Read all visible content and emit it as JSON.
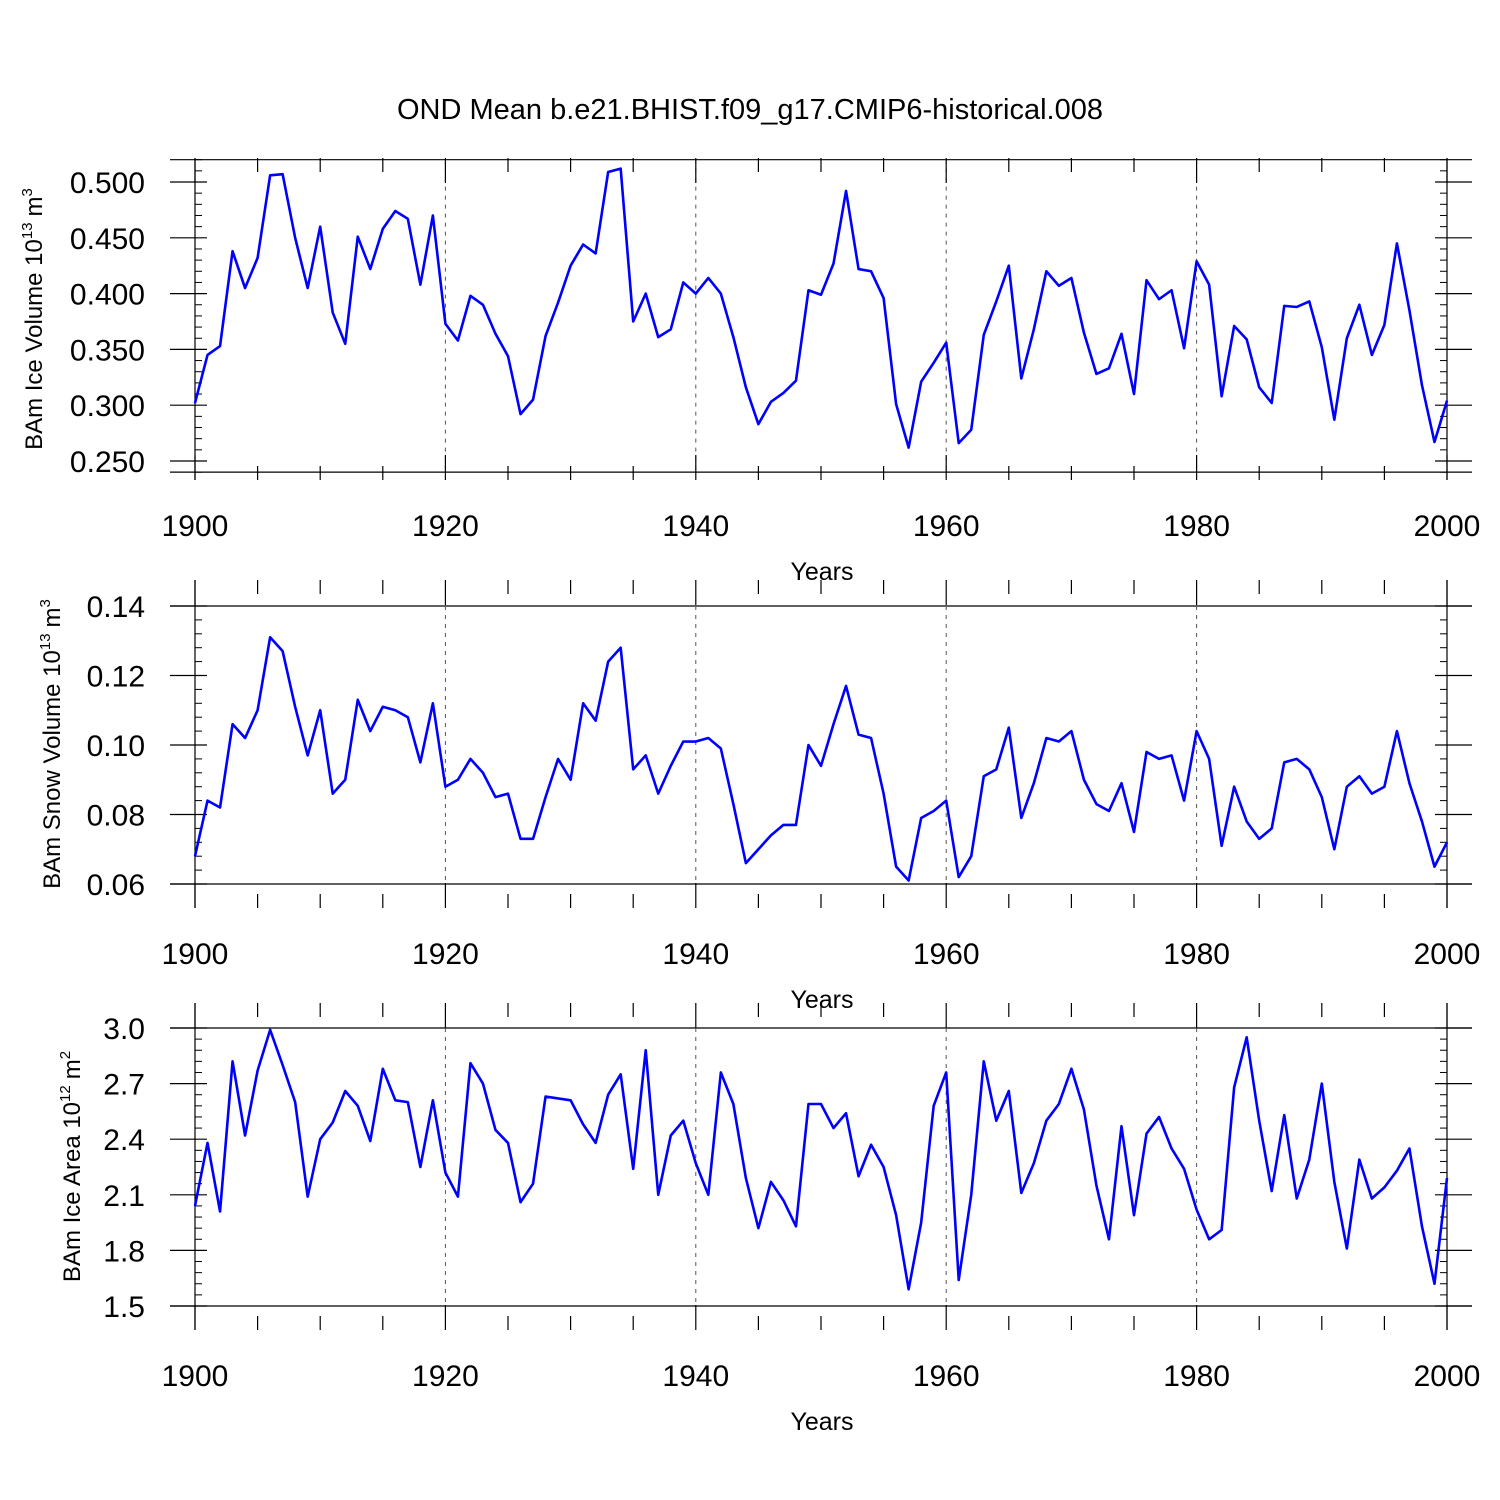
{
  "title": "OND Mean b.e21.BHIST.f09_g17.CMIP6-historical.008",
  "line_color": "#0000ff",
  "chart_data": [
    {
      "type": "line",
      "xlabel": "Years",
      "ylabel_main": "BAm Ice Volume 10",
      "ylabel_exp": "13",
      "ylabel_unit": "m",
      "ylabel_unit_exp": "3",
      "xlim": [
        1900,
        2000
      ],
      "ylim": [
        0.24,
        0.52
      ],
      "yticks": [
        0.25,
        0.3,
        0.35,
        0.4,
        0.45,
        0.5
      ],
      "ytick_labels": [
        "0.250",
        "0.300",
        "0.350",
        "0.400",
        "0.450",
        "0.500"
      ],
      "xticks": [
        1900,
        1920,
        1940,
        1960,
        1980,
        2000
      ],
      "xtick_labels": [
        "1900",
        "1920",
        "1940",
        "1960",
        "1980",
        "2000"
      ],
      "series": [
        {
          "name": "BAm Ice Volume",
          "x_start": 1900,
          "values": [
            0.302,
            0.345,
            0.353,
            0.438,
            0.405,
            0.432,
            0.506,
            0.507,
            0.45,
            0.405,
            0.46,
            0.383,
            0.355,
            0.451,
            0.422,
            0.458,
            0.474,
            0.467,
            0.408,
            0.47,
            0.373,
            0.358,
            0.398,
            0.39,
            0.364,
            0.344,
            0.292,
            0.305,
            0.362,
            0.392,
            0.425,
            0.444,
            0.436,
            0.509,
            0.512,
            0.375,
            0.4,
            0.361,
            0.368,
            0.41,
            0.4,
            0.414,
            0.4,
            0.361,
            0.316,
            0.283,
            0.303,
            0.311,
            0.322,
            0.403,
            0.399,
            0.427,
            0.492,
            0.422,
            0.42,
            0.396,
            0.301,
            0.262,
            0.321,
            0.338,
            0.356,
            0.266,
            0.278,
            0.363,
            0.393,
            0.425,
            0.324,
            0.368,
            0.42,
            0.407,
            0.414,
            0.365,
            0.328,
            0.333,
            0.364,
            0.31,
            0.412,
            0.395,
            0.403,
            0.351,
            0.429,
            0.408,
            0.308,
            0.371,
            0.359,
            0.316,
            0.302,
            0.389,
            0.388,
            0.393,
            0.352,
            0.287,
            0.36,
            0.39,
            0.345,
            0.372,
            0.445,
            0.385,
            0.318,
            0.267,
            0.304
          ]
        }
      ]
    },
    {
      "type": "line",
      "xlabel": "Years",
      "ylabel_main": "BAm Snow Volume 10",
      "ylabel_exp": "13",
      "ylabel_unit": "m",
      "ylabel_unit_exp": "3",
      "xlim": [
        1900,
        2000
      ],
      "ylim": [
        0.06,
        0.14
      ],
      "yticks": [
        0.06,
        0.08,
        0.1,
        0.12,
        0.14
      ],
      "ytick_labels": [
        "0.06",
        "0.08",
        "0.10",
        "0.12",
        "0.14"
      ],
      "xticks": [
        1900,
        1920,
        1940,
        1960,
        1980,
        2000
      ],
      "xtick_labels": [
        "1900",
        "1920",
        "1940",
        "1960",
        "1980",
        "2000"
      ],
      "series": [
        {
          "name": "BAm Snow Volume",
          "x_start": 1900,
          "values": [
            0.068,
            0.084,
            0.082,
            0.106,
            0.102,
            0.11,
            0.131,
            0.127,
            0.111,
            0.097,
            0.11,
            0.086,
            0.09,
            0.113,
            0.104,
            0.111,
            0.11,
            0.108,
            0.095,
            0.112,
            0.088,
            0.09,
            0.096,
            0.092,
            0.085,
            0.086,
            0.073,
            0.073,
            0.085,
            0.096,
            0.09,
            0.112,
            0.107,
            0.124,
            0.128,
            0.093,
            0.097,
            0.086,
            0.094,
            0.101,
            0.101,
            0.102,
            0.099,
            0.083,
            0.066,
            0.07,
            0.074,
            0.077,
            0.077,
            0.1,
            0.094,
            0.106,
            0.117,
            0.103,
            0.102,
            0.086,
            0.065,
            0.061,
            0.079,
            0.081,
            0.084,
            0.062,
            0.068,
            0.091,
            0.093,
            0.105,
            0.079,
            0.089,
            0.102,
            0.101,
            0.104,
            0.09,
            0.083,
            0.081,
            0.089,
            0.075,
            0.098,
            0.096,
            0.097,
            0.084,
            0.104,
            0.096,
            0.071,
            0.088,
            0.078,
            0.073,
            0.076,
            0.095,
            0.096,
            0.093,
            0.085,
            0.07,
            0.088,
            0.091,
            0.086,
            0.088,
            0.104,
            0.089,
            0.078,
            0.065,
            0.072
          ]
        }
      ]
    },
    {
      "type": "line",
      "xlabel": "Years",
      "ylabel_main": "BAm Ice Area 10",
      "ylabel_exp": "12",
      "ylabel_unit": "m",
      "ylabel_unit_exp": "2",
      "xlim": [
        1900,
        2000
      ],
      "ylim": [
        1.5,
        3.0
      ],
      "yticks": [
        1.5,
        1.8,
        2.1,
        2.4,
        2.7,
        3.0
      ],
      "ytick_labels": [
        "1.5",
        "1.8",
        "2.1",
        "2.4",
        "2.7",
        "3.0"
      ],
      "xticks": [
        1900,
        1920,
        1940,
        1960,
        1980,
        2000
      ],
      "xtick_labels": [
        "1900",
        "1920",
        "1940",
        "1960",
        "1980",
        "2000"
      ],
      "series": [
        {
          "name": "BAm Ice Area",
          "x_start": 1900,
          "values": [
            2.04,
            2.38,
            2.01,
            2.82,
            2.42,
            2.77,
            2.99,
            2.8,
            2.6,
            2.09,
            2.4,
            2.49,
            2.66,
            2.58,
            2.39,
            2.78,
            2.61,
            2.6,
            2.25,
            2.61,
            2.22,
            2.09,
            2.81,
            2.7,
            2.45,
            2.38,
            2.06,
            2.16,
            2.63,
            2.62,
            2.61,
            2.48,
            2.38,
            2.64,
            2.75,
            2.24,
            2.88,
            2.1,
            2.42,
            2.5,
            2.27,
            2.1,
            2.76,
            2.59,
            2.19,
            1.92,
            2.17,
            2.07,
            1.93,
            2.59,
            2.59,
            2.46,
            2.54,
            2.2,
            2.37,
            2.25,
            1.99,
            1.59,
            1.95,
            2.58,
            2.76,
            1.64,
            2.1,
            2.82,
            2.5,
            2.66,
            2.11,
            2.27,
            2.5,
            2.59,
            2.78,
            2.56,
            2.15,
            1.86,
            2.47,
            1.99,
            2.43,
            2.52,
            2.35,
            2.24,
            2.02,
            1.86,
            1.91,
            2.68,
            2.95,
            2.5,
            2.12,
            2.53,
            2.08,
            2.29,
            2.7,
            2.17,
            1.81,
            2.29,
            2.08,
            2.14,
            2.23,
            2.35,
            1.93,
            1.62,
            2.19
          ]
        }
      ]
    }
  ]
}
